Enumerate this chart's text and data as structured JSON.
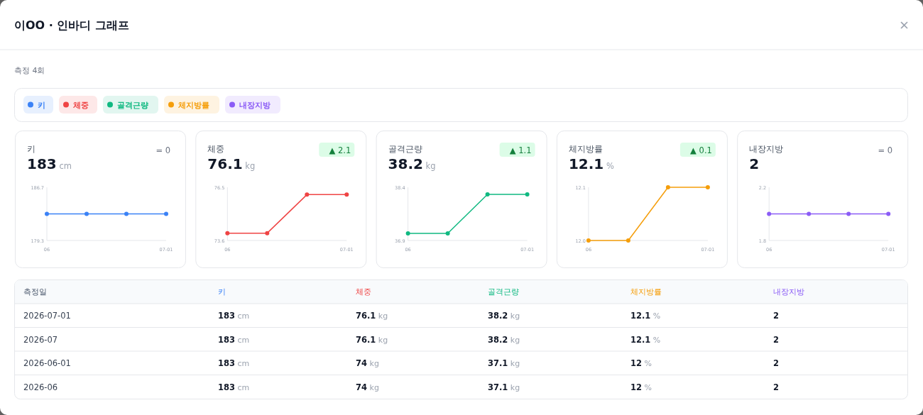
{
  "chart_data": [
    {
      "type": "other",
      "title": "이OO · 인바디 그래프",
      "subtitle": "측정 4회",
      "categories": [
        "키",
        "체중",
        "골격근량",
        "체지방률",
        "내장지방"
      ],
      "colors": [
        "#3b82f6",
        "#ef4444",
        "#10b981",
        "#f59e0b",
        "#8b5cf6"
      ]
    },
    {
      "type": "line",
      "title": "키",
      "subtitle": "183 cm",
      "annotations": [
        "= 0"
      ],
      "categories": [
        "06",
        null,
        null,
        "07-01"
      ],
      "values": [
        183,
        183,
        183,
        183
      ],
      "color": "#3b82f6",
      "ylim": [
        179.3,
        186.7
      ],
      "yticks": [
        179.3,
        186.7
      ],
      "marker": "circle"
    },
    {
      "type": "line",
      "title": "체중",
      "subtitle": "76.1 kg",
      "annotations": [
        "▲ 2.1"
      ],
      "categories": [
        "06",
        null,
        null,
        "07-01"
      ],
      "values": [
        74,
        74,
        76.1,
        76.1
      ],
      "color": "#ef4444",
      "ylim": [
        73.6,
        76.5
      ],
      "yticks": [
        73.6,
        76.5
      ],
      "marker": "circle"
    },
    {
      "type": "line",
      "title": "골격근량",
      "subtitle": "38.2 kg",
      "annotations": [
        "▲ 1.1"
      ],
      "categories": [
        "06",
        null,
        null,
        "07-01"
      ],
      "values": [
        37.1,
        37.1,
        38.2,
        38.2
      ],
      "color": "#10b981",
      "ylim": [
        36.9,
        38.4
      ],
      "yticks": [
        36.9,
        38.4
      ],
      "marker": "circle"
    },
    {
      "type": "line",
      "title": "체지방률",
      "subtitle": "12.1 %",
      "annotations": [
        "▲ 0.1"
      ],
      "categories": [
        "06",
        null,
        null,
        "07-01"
      ],
      "values": [
        12,
        12,
        12.1,
        12.1
      ],
      "color": "#f59e0b",
      "ylim": [
        12,
        12.1
      ],
      "yticks": [
        {
          "value": 12,
          "label": "12.0"
        },
        12.1
      ],
      "marker": "circle"
    },
    {
      "type": "line",
      "title": "내장지방",
      "subtitle": "2",
      "annotations": [
        "= 0"
      ],
      "categories": [
        "06",
        null,
        null,
        "07-01"
      ],
      "values": [
        2,
        2,
        2,
        2
      ],
      "color": "#8b5cf6",
      "ylim": [
        1.8,
        2.2
      ],
      "yticks": [
        1.8,
        2.2
      ],
      "marker": "circle"
    },
    {
      "type": "other",
      "categories": [
        "측정일",
        "키",
        "체중",
        "골격근량",
        "체지방률",
        "내장지방"
      ],
      "annotations": [
        "2026-07-01",
        "183 cm",
        "76.1 kg",
        "38.2 kg",
        "12.1 %",
        "2",
        "2026-07",
        "183 cm",
        "76.1 kg",
        "38.2 kg",
        "12.1 %",
        "2",
        "2026-06-01",
        "183 cm",
        "74 kg",
        "37.1 kg",
        "12 %",
        "2",
        "2026-06",
        "183 cm",
        "74 kg",
        "37.1 kg",
        "12 %",
        "2"
      ]
    }
  ]
}
